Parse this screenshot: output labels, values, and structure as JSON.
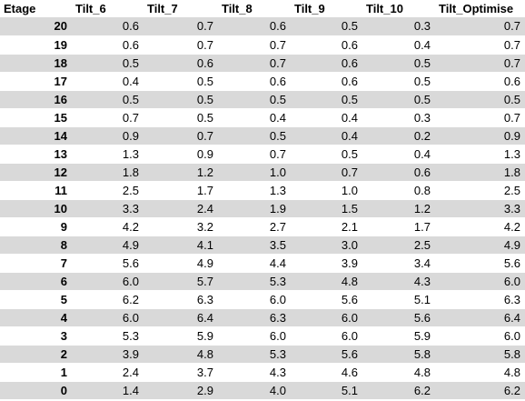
{
  "table": {
    "headers": [
      "Etage",
      "Tilt_6",
      "Tilt_7",
      "Tilt_8",
      "Tilt_9",
      "Tilt_10",
      "Tilt_Optimise"
    ],
    "rows": [
      [
        "20",
        "0.6",
        "0.7",
        "0.6",
        "0.5",
        "0.3",
        "0.7"
      ],
      [
        "19",
        "0.6",
        "0.7",
        "0.7",
        "0.6",
        "0.4",
        "0.7"
      ],
      [
        "18",
        "0.5",
        "0.6",
        "0.7",
        "0.6",
        "0.5",
        "0.7"
      ],
      [
        "17",
        "0.4",
        "0.5",
        "0.6",
        "0.6",
        "0.5",
        "0.6"
      ],
      [
        "16",
        "0.5",
        "0.5",
        "0.5",
        "0.5",
        "0.5",
        "0.5"
      ],
      [
        "15",
        "0.7",
        "0.5",
        "0.4",
        "0.4",
        "0.3",
        "0.7"
      ],
      [
        "14",
        "0.9",
        "0.7",
        "0.5",
        "0.4",
        "0.2",
        "0.9"
      ],
      [
        "13",
        "1.3",
        "0.9",
        "0.7",
        "0.5",
        "0.4",
        "1.3"
      ],
      [
        "12",
        "1.8",
        "1.2",
        "1.0",
        "0.7",
        "0.6",
        "1.8"
      ],
      [
        "11",
        "2.5",
        "1.7",
        "1.3",
        "1.0",
        "0.8",
        "2.5"
      ],
      [
        "10",
        "3.3",
        "2.4",
        "1.9",
        "1.5",
        "1.2",
        "3.3"
      ],
      [
        "9",
        "4.2",
        "3.2",
        "2.7",
        "2.1",
        "1.7",
        "4.2"
      ],
      [
        "8",
        "4.9",
        "4.1",
        "3.5",
        "3.0",
        "2.5",
        "4.9"
      ],
      [
        "7",
        "5.6",
        "4.9",
        "4.4",
        "3.9",
        "3.4",
        "5.6"
      ],
      [
        "6",
        "6.0",
        "5.7",
        "5.3",
        "4.8",
        "4.3",
        "6.0"
      ],
      [
        "5",
        "6.2",
        "6.3",
        "6.0",
        "5.6",
        "5.1",
        "6.3"
      ],
      [
        "4",
        "6.0",
        "6.4",
        "6.3",
        "6.0",
        "5.6",
        "6.4"
      ],
      [
        "3",
        "5.3",
        "5.9",
        "6.0",
        "6.0",
        "5.9",
        "6.0"
      ],
      [
        "2",
        "3.9",
        "4.8",
        "5.3",
        "5.6",
        "5.8",
        "5.8"
      ],
      [
        "1",
        "2.4",
        "3.7",
        "4.3",
        "4.6",
        "4.8",
        "4.8"
      ],
      [
        "0",
        "1.4",
        "2.9",
        "4.0",
        "5.1",
        "6.2",
        "6.2"
      ]
    ]
  },
  "colors": {
    "band_shaded": "#d9d9d9",
    "band_plain": "#ffffff",
    "text": "#000000"
  }
}
